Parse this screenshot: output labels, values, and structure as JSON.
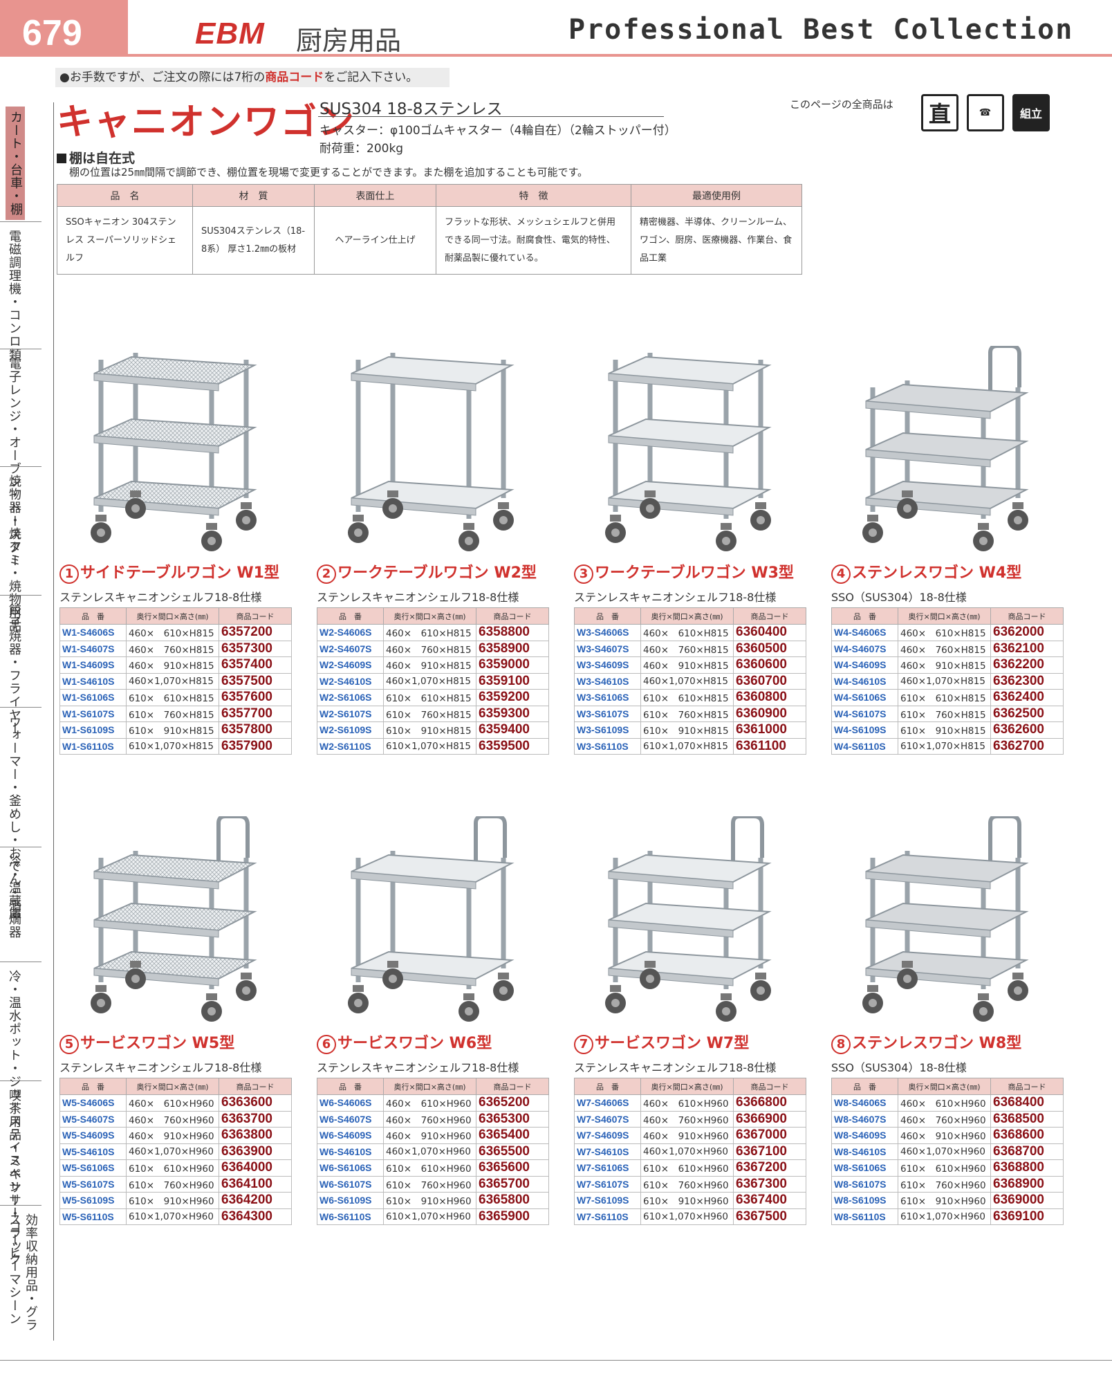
{
  "header": {
    "page_number": "679",
    "brand": "EBM",
    "brand_sub": "厨房用品",
    "collection": "Professional Best Collection",
    "notice_pre": "●お手数ですが、ご注文の際には7桁の",
    "notice_bold": "商品コード",
    "notice_post": "をご記入下さい。"
  },
  "sidebar": {
    "tabs": [
      "カート・台車・棚",
      "電磁調理機・コンロ類",
      "電子レンジ・オーブン・トースター",
      "焼物器・焼アミ・焼物用品",
      "餃子焼器・フライヤー",
      "ウォーマー・釜めし・おでん・酒燗器",
      "冷・温蔵庫",
      "冷・温水ポット・ジューステイスペンサー",
      "喫茶用品・ミキサー・コーヒーマシーン",
      "効率収納用品・グラスラック"
    ]
  },
  "section": {
    "title": "キャニオンワゴン",
    "material": "SUS304 18-8ステンレス",
    "caster": "キャスター：φ100ゴムキャスター（4輪自在）（2輪ストッパー付）",
    "load": "耐荷重：200kg",
    "all_items_label": "このページの全商品は",
    "icons": [
      "直",
      "電",
      "組立"
    ],
    "shelf_heading": "棚は自在式",
    "shelf_desc": "棚の位置は25㎜間隔で調節でき、棚位置を現場で変更することができます。また棚を追加することも可能です。"
  },
  "spec_table": {
    "headers": [
      "品　名",
      "材　質",
      "表面仕上",
      "特　徴",
      "最適使用例"
    ],
    "row": [
      "SSOキャニオン 304ステンレス スーパーソリッドシェルフ",
      "SUS304ステンレス（18-8系） 厚さ1.2㎜の板材",
      "ヘアーライン仕上げ",
      "フラットな形状、メッシュシェルフと併用できる同一寸法。耐腐食性、電気的特性、耐薬品製に優れている。",
      "精密機器、半導体、クリーンルーム、ワゴン、厨房、医療機器、作業台、食品工業"
    ]
  },
  "table_headers": [
    "品　番",
    "奥行×間口×高さ(㎜)",
    "商品コード"
  ],
  "products": [
    {
      "num": "1",
      "name": "サイドテーブルワゴン W1型",
      "sub": "ステンレスキャニオンシェルフ18-8仕様",
      "type": "mesh3",
      "rows": [
        [
          "W1-S4606S",
          "460×　610×H815",
          "6357200"
        ],
        [
          "W1-S4607S",
          "460×　760×H815",
          "6357300"
        ],
        [
          "W1-S4609S",
          "460×　910×H815",
          "6357400"
        ],
        [
          "W1-S4610S",
          "460×1,070×H815",
          "6357500"
        ],
        [
          "W1-S6106S",
          "610×　610×H815",
          "6357600"
        ],
        [
          "W1-S6107S",
          "610×　760×H815",
          "6357700"
        ],
        [
          "W1-S6109S",
          "610×　910×H815",
          "6357800"
        ],
        [
          "W1-S6110S",
          "610×1,070×H815",
          "6357900"
        ]
      ]
    },
    {
      "num": "2",
      "name": "ワークテーブルワゴン W2型",
      "sub": "ステンレスキャニオンシェルフ18-8仕様",
      "type": "flat2",
      "rows": [
        [
          "W2-S4606S",
          "460×　610×H815",
          "6358800"
        ],
        [
          "W2-S4607S",
          "460×　760×H815",
          "6358900"
        ],
        [
          "W2-S4609S",
          "460×　910×H815",
          "6359000"
        ],
        [
          "W2-S4610S",
          "460×1,070×H815",
          "6359100"
        ],
        [
          "W2-S6106S",
          "610×　610×H815",
          "6359200"
        ],
        [
          "W2-S6107S",
          "610×　760×H815",
          "6359300"
        ],
        [
          "W2-S6109S",
          "610×　910×H815",
          "6359400"
        ],
        [
          "W2-S6110S",
          "610×1,070×H815",
          "6359500"
        ]
      ]
    },
    {
      "num": "3",
      "name": "ワークテーブルワゴン W3型",
      "sub": "ステンレスキャニオンシェルフ18-8仕様",
      "type": "flat3",
      "rows": [
        [
          "W3-S4606S",
          "460×　610×H815",
          "6360400"
        ],
        [
          "W3-S4607S",
          "460×　760×H815",
          "6360500"
        ],
        [
          "W3-S4609S",
          "460×　910×H815",
          "6360600"
        ],
        [
          "W3-S4610S",
          "460×1,070×H815",
          "6360700"
        ],
        [
          "W3-S6106S",
          "610×　610×H815",
          "6360800"
        ],
        [
          "W3-S6107S",
          "610×　760×H815",
          "6360900"
        ],
        [
          "W3-S6109S",
          "610×　910×H815",
          "6361000"
        ],
        [
          "W3-S6110S",
          "610×1,070×H815",
          "6361100"
        ]
      ]
    },
    {
      "num": "4",
      "name": "ステンレスワゴン W4型",
      "sub": "SSO（SUS304）18-8仕様",
      "type": "solid3h",
      "rows": [
        [
          "W4-S4606S",
          "460×　610×H815",
          "6362000"
        ],
        [
          "W4-S4607S",
          "460×　760×H815",
          "6362100"
        ],
        [
          "W4-S4609S",
          "460×　910×H815",
          "6362200"
        ],
        [
          "W4-S4610S",
          "460×1,070×H815",
          "6362300"
        ],
        [
          "W4-S6106S",
          "610×　610×H815",
          "6362400"
        ],
        [
          "W4-S6107S",
          "610×　760×H815",
          "6362500"
        ],
        [
          "W4-S6109S",
          "610×　910×H815",
          "6362600"
        ],
        [
          "W4-S6110S",
          "610×1,070×H815",
          "6362700"
        ]
      ]
    },
    {
      "num": "5",
      "name": "サービスワゴン W5型",
      "sub": "ステンレスキャニオンシェルフ18-8仕様",
      "type": "mesh3h",
      "rows": [
        [
          "W5-S4606S",
          "460×　610×H960",
          "6363600"
        ],
        [
          "W5-S4607S",
          "460×　760×H960",
          "6363700"
        ],
        [
          "W5-S4609S",
          "460×　910×H960",
          "6363800"
        ],
        [
          "W5-S4610S",
          "460×1,070×H960",
          "6363900"
        ],
        [
          "W5-S6106S",
          "610×　610×H960",
          "6364000"
        ],
        [
          "W5-S6107S",
          "610×　760×H960",
          "6364100"
        ],
        [
          "W5-S6109S",
          "610×　910×H960",
          "6364200"
        ],
        [
          "W5-S6110S",
          "610×1,070×H960",
          "6364300"
        ]
      ]
    },
    {
      "num": "6",
      "name": "サービスワゴン W6型",
      "sub": "ステンレスキャニオンシェルフ18-8仕様",
      "type": "flat2h",
      "rows": [
        [
          "W6-S4606S",
          "460×　610×H960",
          "6365200"
        ],
        [
          "W6-S4607S",
          "460×　760×H960",
          "6365300"
        ],
        [
          "W6-S4609S",
          "460×　910×H960",
          "6365400"
        ],
        [
          "W6-S4610S",
          "460×1,070×H960",
          "6365500"
        ],
        [
          "W6-S6106S",
          "610×　610×H960",
          "6365600"
        ],
        [
          "W6-S6107S",
          "610×　760×H960",
          "6365700"
        ],
        [
          "W6-S6109S",
          "610×　910×H960",
          "6365800"
        ],
        [
          "W6-S6110S",
          "610×1,070×H960",
          "6365900"
        ]
      ]
    },
    {
      "num": "7",
      "name": "サービスワゴン W7型",
      "sub": "ステンレスキャニオンシェルフ18-8仕様",
      "type": "flat3h",
      "rows": [
        [
          "W7-S4606S",
          "460×　610×H960",
          "6366800"
        ],
        [
          "W7-S4607S",
          "460×　760×H960",
          "6366900"
        ],
        [
          "W7-S4609S",
          "460×　910×H960",
          "6367000"
        ],
        [
          "W7-S4610S",
          "460×1,070×H960",
          "6367100"
        ],
        [
          "W7-S6106S",
          "610×　610×H960",
          "6367200"
        ],
        [
          "W7-S6107S",
          "610×　760×H960",
          "6367300"
        ],
        [
          "W7-S6109S",
          "610×　910×H960",
          "6367400"
        ],
        [
          "W7-S6110S",
          "610×1,070×H960",
          "6367500"
        ]
      ]
    },
    {
      "num": "8",
      "name": "ステンレスワゴン W8型",
      "sub": "SSO（SUS304）18-8仕様",
      "type": "solid3h",
      "rows": [
        [
          "W8-S4606S",
          "460×　610×H960",
          "6368400"
        ],
        [
          "W8-S4607S",
          "460×　760×H960",
          "6368500"
        ],
        [
          "W8-S4609S",
          "460×　910×H960",
          "6368600"
        ],
        [
          "W8-S4610S",
          "460×1,070×H960",
          "6368700"
        ],
        [
          "W8-S6106S",
          "610×　610×H960",
          "6368800"
        ],
        [
          "W8-S6107S",
          "610×　760×H960",
          "6368900"
        ],
        [
          "W8-S6109S",
          "610×　910×H960",
          "6369000"
        ],
        [
          "W8-S6110S",
          "610×1,070×H960",
          "6369100"
        ]
      ]
    }
  ]
}
